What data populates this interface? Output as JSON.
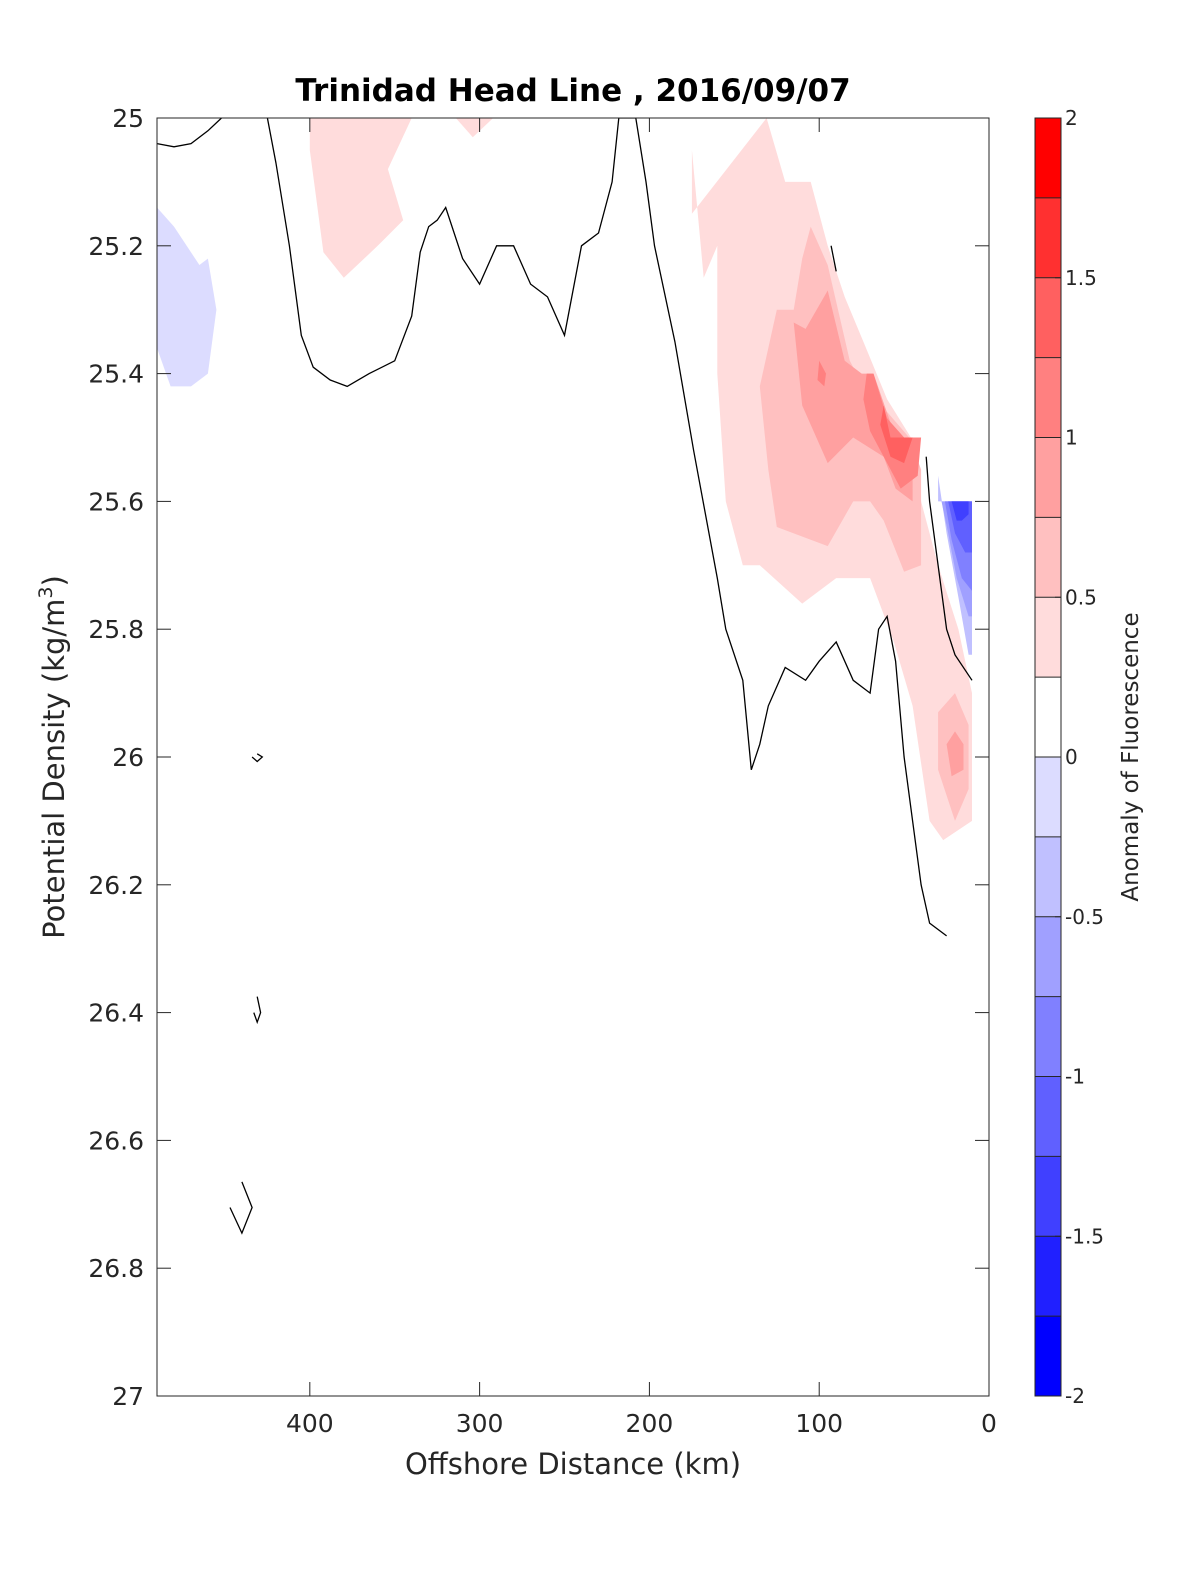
{
  "chart_data": {
    "type": "contourf",
    "title": "Trinidad Head Line , 2016/09/07",
    "xlabel": "Offshore Distance (km)",
    "ylabel": "Potential Density (kg/m",
    "ylabel_sup": "3",
    "ylabel_close": ")",
    "xlim": [
      490,
      0
    ],
    "x_reversed": true,
    "ylim": [
      25,
      27
    ],
    "y_reversed": true,
    "x_ticks": [
      400,
      300,
      200,
      100,
      0
    ],
    "x_tick_labels": [
      "400",
      "300",
      "200",
      "100",
      "0"
    ],
    "y_ticks": [
      25,
      25.2,
      25.4,
      25.6,
      25.8,
      26,
      26.2,
      26.4,
      26.6,
      26.8,
      27
    ],
    "y_tick_labels": [
      "25",
      "25.2",
      "25.4",
      "25.6",
      "25.8",
      "26",
      "26.2",
      "26.4",
      "26.6",
      "26.8",
      "27"
    ],
    "colorbar": {
      "label": "Anomaly of Fluorescence",
      "range": [
        -2,
        2
      ],
      "levels": [
        -2,
        -1.75,
        -1.5,
        -1.25,
        -1,
        -0.75,
        -0.5,
        -0.25,
        0,
        0.25,
        0.5,
        0.75,
        1,
        1.25,
        1.5,
        1.75,
        2
      ],
      "colors": [
        "#0000ff",
        "#2020ff",
        "#4040ff",
        "#6060ff",
        "#8080ff",
        "#a0a0ff",
        "#c0c0ff",
        "#dcdcff",
        "#ffffff",
        "#ffffff",
        "#ffdcdc",
        "#ffc0c0",
        "#ffa0a0",
        "#ff8080",
        "#ff6060",
        "#ff3030",
        "#ff0000"
      ],
      "tick_values": [
        2,
        1.5,
        1,
        0.5,
        0,
        -0.5,
        -1,
        -1.5,
        -2
      ],
      "tick_labels": [
        "2",
        "1.5",
        "1",
        "0.5",
        "0",
        "-0.5",
        "-1",
        "-1.5",
        "-2"
      ]
    },
    "regions": [
      {
        "level": 0.375,
        "color": "#ffdcdc",
        "points": [
          [
            305,
            25
          ],
          [
            340,
            25
          ],
          [
            354,
            25.08
          ],
          [
            345,
            25.16
          ],
          [
            360,
            25.2
          ],
          [
            380,
            25.25
          ],
          [
            392,
            25.21
          ],
          [
            400,
            25.05
          ],
          [
            400,
            25
          ]
        ]
      },
      {
        "level": 0.375,
        "color": "#ffdcdc",
        "points": [
          [
            314,
            25
          ],
          [
            304,
            25.03
          ],
          [
            300,
            25.02
          ],
          [
            292,
            25
          ]
        ]
      },
      {
        "level": 0.375,
        "color": "#ffdcdc",
        "points": [
          [
            131,
            25
          ],
          [
            120,
            25.1
          ],
          [
            105,
            25.1
          ],
          [
            95,
            25.2
          ],
          [
            85,
            25.28
          ],
          [
            74,
            25.35
          ],
          [
            60,
            25.44
          ],
          [
            46,
            25.5
          ],
          [
            40,
            25.6
          ],
          [
            30,
            25.7
          ],
          [
            18,
            25.8
          ],
          [
            10,
            25.9
          ],
          [
            10,
            26.1
          ],
          [
            27,
            26.13
          ],
          [
            35,
            26.1
          ],
          [
            45,
            25.92
          ],
          [
            56,
            25.82
          ],
          [
            70,
            25.72
          ],
          [
            90,
            25.72
          ],
          [
            110,
            25.76
          ],
          [
            135,
            25.7
          ],
          [
            145,
            25.7
          ],
          [
            155,
            25.6
          ],
          [
            160,
            25.4
          ],
          [
            160,
            25.2
          ],
          [
            168,
            25.25
          ],
          [
            175,
            25.05
          ],
          [
            175,
            25.15
          ]
        ]
      },
      {
        "level": -0.375,
        "color": "#dcdcff",
        "points": [
          [
            490,
            25.14
          ],
          [
            480,
            25.17
          ],
          [
            465,
            25.23
          ],
          [
            460,
            25.22
          ],
          [
            455,
            25.3
          ],
          [
            460,
            25.4
          ],
          [
            470,
            25.42
          ],
          [
            482,
            25.42
          ],
          [
            490,
            25.36
          ]
        ]
      },
      {
        "level": 0.625,
        "color": "#ffc0c0",
        "points": [
          [
            105,
            25.17
          ],
          [
            95,
            25.23
          ],
          [
            82,
            25.38
          ],
          [
            70,
            25.44
          ],
          [
            60,
            25.46
          ],
          [
            47,
            25.5
          ],
          [
            40,
            25.55
          ],
          [
            40,
            25.7
          ],
          [
            50,
            25.71
          ],
          [
            62,
            25.63
          ],
          [
            70,
            25.6
          ],
          [
            80,
            25.6
          ],
          [
            95,
            25.67
          ],
          [
            105,
            25.66
          ],
          [
            125,
            25.64
          ],
          [
            130,
            25.55
          ],
          [
            135,
            25.42
          ],
          [
            125,
            25.3
          ],
          [
            115,
            25.3
          ],
          [
            110,
            25.22
          ]
        ]
      },
      {
        "level": 0.625,
        "color": "#ffc0c0",
        "points": [
          [
            20,
            25.9
          ],
          [
            12,
            25.95
          ],
          [
            12,
            26.05
          ],
          [
            20,
            26.1
          ],
          [
            30,
            26.02
          ],
          [
            30,
            25.93
          ]
        ]
      },
      {
        "level": 0.875,
        "color": "#ffa0a0",
        "points": [
          [
            95,
            25.27
          ],
          [
            85,
            25.38
          ],
          [
            75,
            25.4
          ],
          [
            68,
            25.4
          ],
          [
            55,
            25.5
          ],
          [
            45,
            25.5
          ],
          [
            45,
            25.6
          ],
          [
            55,
            25.58
          ],
          [
            62,
            25.53
          ],
          [
            80,
            25.5
          ],
          [
            95,
            25.54
          ],
          [
            110,
            25.45
          ],
          [
            115,
            25.32
          ],
          [
            108,
            25.33
          ]
        ]
      },
      {
        "level": 0.875,
        "color": "#ffa0a0",
        "points": [
          [
            20,
            25.96
          ],
          [
            15,
            25.98
          ],
          [
            15,
            26.02
          ],
          [
            22,
            26.03
          ],
          [
            25,
            25.98
          ]
        ]
      },
      {
        "level": 1.125,
        "color": "#ff8080",
        "points": [
          [
            100,
            25.38
          ],
          [
            96,
            25.4
          ],
          [
            97,
            25.42
          ],
          [
            101,
            25.41
          ]
        ]
      },
      {
        "level": 1.125,
        "color": "#ff8080",
        "points": [
          [
            68,
            25.4
          ],
          [
            60,
            25.47
          ],
          [
            50,
            25.5
          ],
          [
            40,
            25.5
          ],
          [
            42,
            25.56
          ],
          [
            52,
            25.58
          ],
          [
            62,
            25.53
          ],
          [
            70,
            25.49
          ],
          [
            74,
            25.44
          ],
          [
            72,
            25.4
          ]
        ]
      },
      {
        "level": 1.375,
        "color": "#ff6060",
        "points": [
          [
            62,
            25.45
          ],
          [
            58,
            25.5
          ],
          [
            45,
            25.5
          ],
          [
            50,
            25.54
          ],
          [
            58,
            25.53
          ],
          [
            64,
            25.48
          ]
        ]
      },
      {
        "level": -0.625,
        "color": "#c0c0ff",
        "points": [
          [
            30,
            25.56
          ],
          [
            25,
            25.65
          ],
          [
            18,
            25.75
          ],
          [
            12,
            25.84
          ],
          [
            10,
            25.84
          ],
          [
            10,
            25.6
          ],
          [
            30,
            25.6
          ]
        ]
      },
      {
        "level": -0.875,
        "color": "#a0a0ff",
        "points": [
          [
            28,
            25.6
          ],
          [
            24,
            25.65
          ],
          [
            19,
            25.72
          ],
          [
            12,
            25.78
          ],
          [
            10,
            25.78
          ],
          [
            10,
            25.6
          ]
        ]
      },
      {
        "level": -1.125,
        "color": "#8080ff",
        "points": [
          [
            26,
            25.6
          ],
          [
            22,
            25.66
          ],
          [
            16,
            25.72
          ],
          [
            10,
            25.74
          ],
          [
            10,
            25.6
          ]
        ]
      },
      {
        "level": -1.375,
        "color": "#6060ff",
        "points": [
          [
            24,
            25.6
          ],
          [
            20,
            25.65
          ],
          [
            14,
            25.68
          ],
          [
            10,
            25.68
          ],
          [
            10,
            25.6
          ]
        ]
      },
      {
        "level": -1.625,
        "color": "#4040ff",
        "points": [
          [
            22,
            25.6
          ],
          [
            19,
            25.63
          ],
          [
            16,
            25.63
          ],
          [
            12,
            25.62
          ],
          [
            12,
            25.6
          ]
        ]
      }
    ],
    "contours": [
      {
        "level": 0,
        "points": [
          [
            490,
            25.04
          ],
          [
            480,
            25.045
          ],
          [
            470,
            25.04
          ],
          [
            460,
            25.02
          ],
          [
            452,
            25
          ]
        ]
      },
      {
        "level": 0,
        "points": [
          [
            425,
            25
          ],
          [
            420,
            25.07
          ],
          [
            412,
            25.2
          ],
          [
            405,
            25.34
          ],
          [
            398,
            25.39
          ],
          [
            388,
            25.41
          ],
          [
            378,
            25.42
          ],
          [
            365,
            25.4
          ],
          [
            350,
            25.38
          ],
          [
            340,
            25.31
          ],
          [
            335,
            25.21
          ],
          [
            330,
            25.17
          ],
          [
            325,
            25.16
          ],
          [
            320,
            25.14
          ],
          [
            310,
            25.22
          ],
          [
            300,
            25.26
          ],
          [
            290,
            25.2
          ],
          [
            280,
            25.2
          ],
          [
            270,
            25.26
          ],
          [
            260,
            25.28
          ],
          [
            250,
            25.34
          ],
          [
            240,
            25.2
          ],
          [
            230,
            25.18
          ],
          [
            222,
            25.1
          ],
          [
            218,
            25
          ],
          [
            208,
            25
          ],
          [
            202,
            25.1
          ],
          [
            197,
            25.2
          ],
          [
            185,
            25.35
          ],
          [
            174,
            25.52
          ],
          [
            160,
            25.72
          ],
          [
            155,
            25.8
          ],
          [
            145,
            25.88
          ],
          [
            140,
            26.02
          ],
          [
            135,
            25.98
          ],
          [
            130,
            25.92
          ],
          [
            120,
            25.86
          ],
          [
            108,
            25.88
          ],
          [
            100,
            25.85
          ],
          [
            90,
            25.82
          ],
          [
            80,
            25.88
          ],
          [
            70,
            25.9
          ],
          [
            65,
            25.8
          ],
          [
            60,
            25.78
          ],
          [
            55,
            25.85
          ],
          [
            50,
            26
          ],
          [
            45,
            26.1
          ],
          [
            40,
            26.2
          ],
          [
            35,
            26.26
          ],
          [
            25,
            26.28
          ]
        ]
      },
      {
        "level": 0,
        "points": [
          [
            37,
            25.53
          ],
          [
            35,
            25.6
          ],
          [
            30,
            25.7
          ],
          [
            25,
            25.8
          ],
          [
            20,
            25.84
          ],
          [
            10,
            25.88
          ]
        ]
      },
      {
        "level": 0,
        "points": [
          [
            93,
            25.2
          ],
          [
            90,
            25.24
          ]
        ]
      },
      {
        "level": 0,
        "points": [
          [
            431,
            25.995
          ],
          [
            428,
            26
          ],
          [
            431,
            26.007
          ],
          [
            434,
            26
          ]
        ]
      },
      {
        "level": 0,
        "points": [
          [
            431,
            26.375
          ],
          [
            429,
            26.4
          ],
          [
            431,
            26.415
          ],
          [
            433,
            26.4
          ]
        ]
      },
      {
        "level": 0,
        "points": [
          [
            440,
            26.665
          ],
          [
            434,
            26.705
          ],
          [
            440,
            26.745
          ],
          [
            447,
            26.705
          ]
        ]
      }
    ]
  }
}
